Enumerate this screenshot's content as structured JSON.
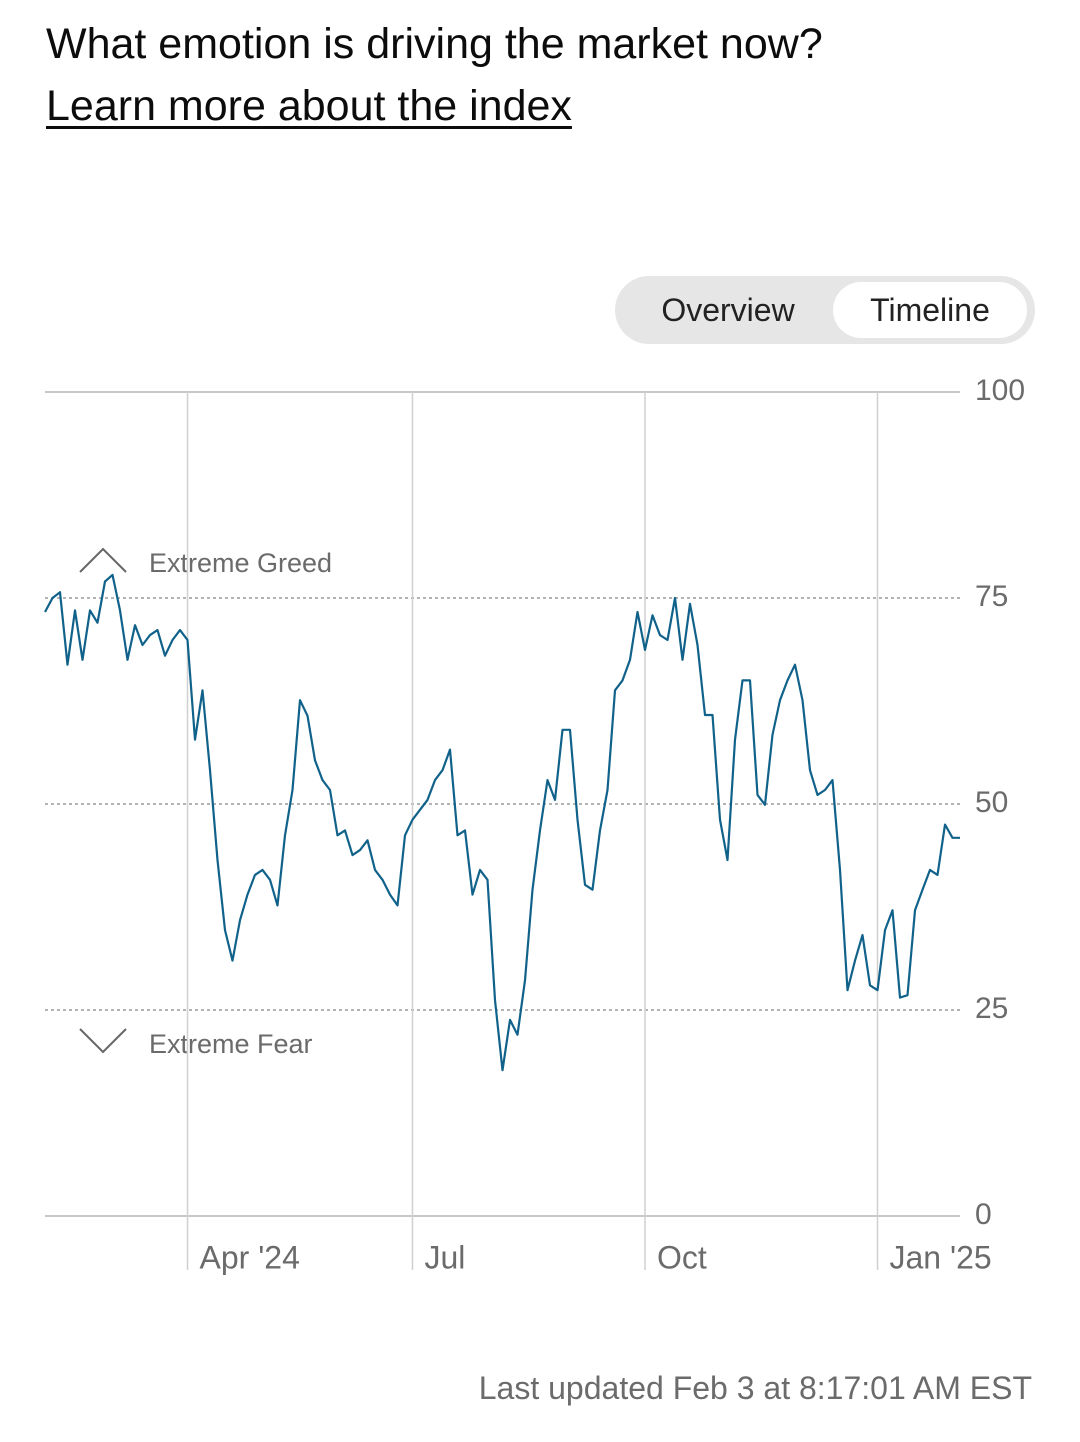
{
  "header": {
    "title": "What emotion is driving the market now?",
    "link": "Learn more about the index"
  },
  "tabs": [
    "Overview",
    "Timeline"
  ],
  "chart_data": {
    "type": "line",
    "annotations": [
      "Extreme Greed",
      "Extreme Fear"
    ],
    "categories": [
      null,
      null,
      null,
      null,
      null,
      null,
      null,
      null,
      null,
      null,
      null,
      null,
      null,
      null,
      null,
      null,
      null,
      null,
      null,
      "Apr '24",
      null,
      null,
      null,
      null,
      null,
      null,
      null,
      null,
      null,
      null,
      null,
      null,
      null,
      null,
      null,
      null,
      null,
      null,
      null,
      null,
      null,
      null,
      null,
      null,
      null,
      null,
      null,
      null,
      null,
      "Jul",
      null,
      null,
      null,
      null,
      null,
      null,
      null,
      null,
      null,
      null,
      null,
      null,
      null,
      null,
      null,
      null,
      null,
      null,
      null,
      null,
      null,
      null,
      null,
      null,
      null,
      null,
      null,
      null,
      null,
      null,
      "Oct",
      null,
      null,
      null,
      null,
      null,
      null,
      null,
      null,
      null,
      null,
      null,
      null,
      null,
      null,
      null,
      null,
      null,
      null,
      null,
      null,
      null,
      null,
      null,
      null,
      null,
      null,
      null,
      null,
      null,
      null,
      "Jan '25",
      null,
      null,
      null,
      null,
      null,
      null,
      null,
      null,
      null,
      null,
      null
    ],
    "series": [
      {
        "color": "#11628a",
        "values": [
          73.3,
          75,
          75.7,
          66.9,
          73.5,
          67.5,
          73.5,
          72,
          77,
          77.8,
          73.5,
          67.5,
          71.7,
          69.3,
          70.5,
          71.1,
          68,
          69.9,
          71.1,
          69.9,
          57.8,
          63.8,
          54.1,
          43.2,
          34.7,
          31,
          35.9,
          39,
          41.4,
          42,
          40.8,
          37.7,
          46.2,
          51.7,
          62.6,
          60.7,
          55.3,
          52.9,
          51.7,
          46.2,
          46.8,
          43.8,
          44.4,
          45.6,
          42,
          40.8,
          39,
          37.7,
          46.2,
          48.1,
          49.3,
          50.5,
          52.9,
          54.1,
          56.6,
          46.2,
          46.8,
          39,
          42,
          40.8,
          26.2,
          17.7,
          23.8,
          22,
          28.6,
          39.6,
          46.8,
          52.9,
          50.5,
          59,
          59,
          48.1,
          40.2,
          39.6,
          46.8,
          51.7,
          63.8,
          65,
          67.5,
          73.3,
          68.7,
          72.9,
          70.5,
          69.9,
          75,
          67.5,
          74.3,
          69.3,
          60.8,
          60.8,
          48.1,
          43.2,
          57.8,
          65,
          65,
          51.1,
          49.9,
          58.4,
          62.6,
          65,
          66.9,
          62.6,
          54.1,
          51.1,
          51.7,
          52.9,
          42,
          27.4,
          31,
          34.1,
          28,
          27.4,
          34.7,
          37.1,
          26.5,
          26.8,
          37.1,
          39.6,
          42,
          41.4,
          47.5,
          45.9,
          45.9
        ]
      }
    ],
    "ylim": [
      0,
      100
    ],
    "yticks": [
      0,
      25,
      50,
      75,
      100
    ]
  },
  "footer": "Last updated Feb 3 at 8:17:01 AM EST"
}
